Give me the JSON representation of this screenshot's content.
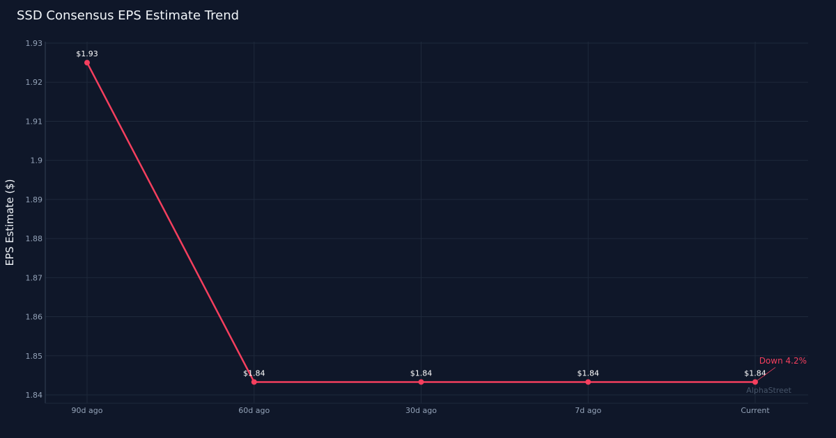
{
  "chart_data": {
    "type": "line",
    "title": "SSD Consensus EPS Estimate Trend",
    "xlabel": "",
    "ylabel": "EPS Estimate ($)",
    "categories": [
      "90d ago",
      "60d ago",
      "30d ago",
      "7d ago",
      "Current"
    ],
    "series": [
      {
        "values": [
          1.925,
          1.8433,
          1.8433,
          1.8433,
          1.8433
        ]
      }
    ],
    "data_labels": [
      "$1.93",
      "$1.84",
      "$1.84",
      "$1.84",
      "$1.84"
    ],
    "y_ticks": [
      "1.84",
      "1.85",
      "1.86",
      "1.87",
      "1.88",
      "1.89",
      "1.9",
      "1.91",
      "1.92",
      "1.93"
    ],
    "ylim": [
      1.838,
      1.931
    ],
    "grid": true,
    "annotation": {
      "text": "Down 4.2%",
      "point": "Current"
    },
    "watermark": "AlphaStreet",
    "colors": {
      "background": "#0f1729",
      "line": "#f43f5e",
      "grid": "#1e293b",
      "tick": "#94a3b8",
      "annotation": "#f43f5e",
      "watermark": "#475569"
    }
  }
}
